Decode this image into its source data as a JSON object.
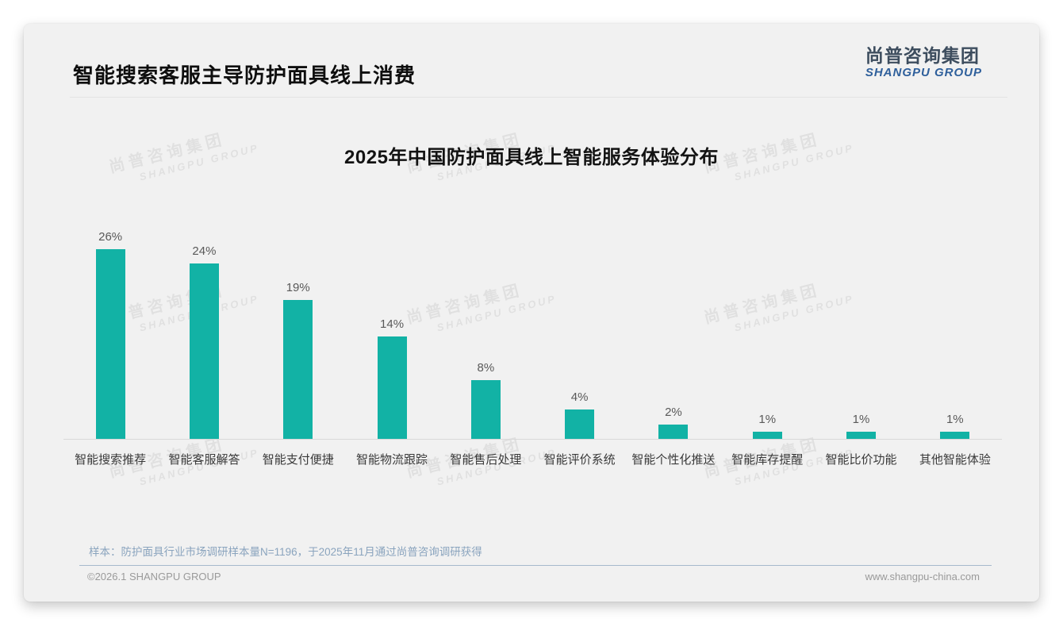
{
  "page": {
    "title": "智能搜索客服主导防护面具线上消费",
    "logo": {
      "cn": "尚普咨询集团",
      "en": "SHANGPU GROUP",
      "cn_color": "#3d4d5e",
      "en_color": "#2e5f9b"
    },
    "watermark": {
      "cn": "尚普咨询集团",
      "en": "SHANGPU GROUP"
    },
    "footer": {
      "sample_note": "样本：防护面具行业市场调研样本量N=1196，于2025年11月通过尚普咨询调研获得",
      "copyright": "©2026.1 SHANGPU GROUP",
      "website": "www.shangpu-china.com"
    }
  },
  "chart_data": {
    "type": "bar",
    "title": "2025年中国防护面具线上智能服务体验分布",
    "categories": [
      "智能搜索推荐",
      "智能客服解答",
      "智能支付便捷",
      "智能物流跟踪",
      "智能售后处理",
      "智能评价系统",
      "智能个性化推送",
      "智能库存提醒",
      "智能比价功能",
      "其他智能体验"
    ],
    "values": [
      26,
      24,
      19,
      14,
      8,
      4,
      2,
      1,
      1,
      1
    ],
    "data_labels": [
      "26%",
      "24%",
      "19%",
      "14%",
      "8%",
      "4%",
      "2%",
      "1%",
      "1%",
      "1%"
    ],
    "unit": "%",
    "bar_color": "#12b2a5",
    "ylim": [
      0,
      28
    ],
    "grid": false,
    "legend": false,
    "xlabel": "",
    "ylabel": ""
  }
}
